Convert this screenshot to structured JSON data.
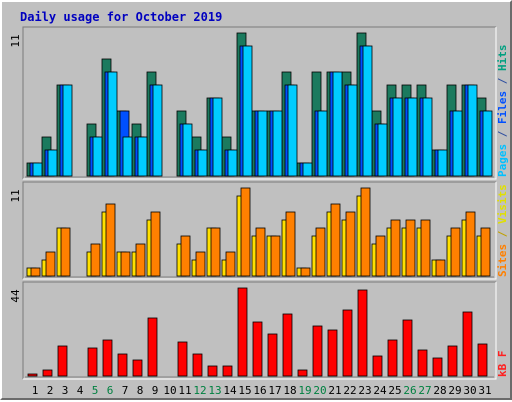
{
  "chart_data": {
    "type": "bar",
    "title": "Daily usage for October 2019",
    "categories": [
      "1",
      "2",
      "3",
      "4",
      "5",
      "6",
      "7",
      "8",
      "9",
      "10",
      "11",
      "12",
      "13",
      "14",
      "15",
      "16",
      "17",
      "18",
      "19",
      "20",
      "21",
      "22",
      "23",
      "24",
      "25",
      "26",
      "27",
      "28",
      "29",
      "30",
      "31"
    ],
    "weekend_days": [
      5,
      6,
      12,
      13,
      19,
      20,
      26,
      27
    ],
    "panels": [
      {
        "name": "hits-panel",
        "ymax_label": "11",
        "ymax": 11,
        "legend": [
          {
            "label": "Pages",
            "color": "#00c0ff"
          },
          {
            "label": "/",
            "color": "#3050a0"
          },
          {
            "label": "Files",
            "color": "#0050ff"
          },
          {
            "label": "/",
            "color": "#3050a0"
          },
          {
            "label": "Hits",
            "color": "#00a080"
          }
        ],
        "series": [
          {
            "name": "Hits",
            "color": "#1b7a5e",
            "values": [
              1,
              3,
              7,
              0,
              4,
              9,
              5,
              4,
              8,
              0,
              5,
              3,
              6,
              3,
              11,
              5,
              5,
              8,
              1,
              8,
              8,
              8,
              11,
              5,
              7,
              7,
              7,
              2,
              7,
              7,
              6
            ]
          },
          {
            "name": "Files",
            "color": "#0050ff",
            "values": [
              1,
              2,
              7,
              0,
              3,
              8,
              5,
              3,
              7,
              0,
              4,
              2,
              6,
              2,
              10,
              5,
              5,
              7,
              1,
              5,
              8,
              7,
              10,
              4,
              6,
              6,
              6,
              2,
              5,
              7,
              5
            ]
          },
          {
            "name": "Pages",
            "color": "#00ccff",
            "values": [
              1,
              2,
              7,
              0,
              3,
              8,
              3,
              3,
              7,
              0,
              4,
              2,
              6,
              2,
              10,
              5,
              5,
              7,
              1,
              5,
              8,
              7,
              10,
              4,
              6,
              6,
              6,
              2,
              5,
              7,
              5
            ]
          }
        ]
      },
      {
        "name": "visits-panel",
        "ymax_label": "11",
        "ymax": 11,
        "legend": [
          {
            "label": "Sites",
            "color": "#ff8000"
          },
          {
            "label": "/",
            "color": "#c0a000"
          },
          {
            "label": "Visits",
            "color": "#e0e000"
          }
        ],
        "series": [
          {
            "name": "Visits",
            "color": "#ffe000",
            "values": [
              1,
              2,
              6,
              0,
              3,
              8,
              3,
              3,
              7,
              0,
              4,
              2,
              6,
              2,
              10,
              5,
              5,
              7,
              1,
              5,
              8,
              7,
              10,
              4,
              6,
              6,
              6,
              2,
              5,
              7,
              5
            ]
          },
          {
            "name": "Sites",
            "color": "#ff8000",
            "values": [
              1,
              3,
              6,
              0,
              4,
              9,
              3,
              4,
              8,
              0,
              5,
              3,
              6,
              3,
              11,
              6,
              5,
              8,
              1,
              6,
              9,
              8,
              11,
              5,
              7,
              7,
              7,
              2,
              6,
              8,
              6
            ]
          }
        ]
      },
      {
        "name": "kbytes-panel",
        "ymax_label": "44",
        "ymax": 44,
        "legend": [
          {
            "label": "kB F",
            "color": "#ff2020"
          }
        ],
        "series": [
          {
            "name": "kB F",
            "color": "#ff0000",
            "values": [
              1,
              3,
              15,
              0,
              14,
              18,
              11,
              8,
              29,
              0,
              17,
              11,
              5,
              5,
              44,
              27,
              21,
              31,
              3,
              25,
              23,
              33,
              43,
              10,
              18,
              28,
              13,
              9,
              15,
              32,
              16
            ]
          }
        ]
      }
    ]
  }
}
